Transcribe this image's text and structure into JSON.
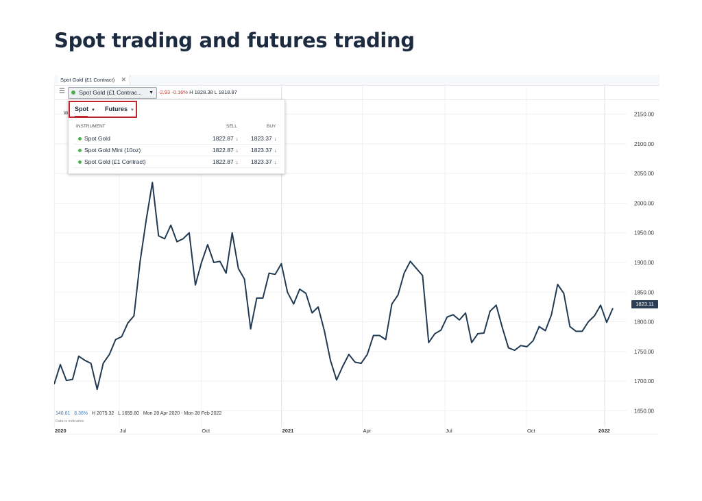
{
  "page": {
    "title": "Spot trading and futures trading"
  },
  "tabbar": {
    "tab_label": "Spot Gold (£1 Contract)",
    "close_glyph": "✕"
  },
  "toolbar": {
    "menu_glyph": "☰",
    "selector_label": "Spot Gold (£1 Contrac...",
    "change": "-2.93",
    "change_pct": "-0.16%",
    "high": "H 1828.38",
    "low": "L 1818.87"
  },
  "dropdown": {
    "tabs": [
      {
        "label": "Spot"
      },
      {
        "label": "Futures"
      }
    ],
    "headers": {
      "instrument": "INSTRUMENT",
      "sell": "SELL",
      "buy": "BUY"
    },
    "rows": [
      {
        "name": "Spot Gold",
        "sell": "1822.87",
        "buy": "1823.37"
      },
      {
        "name": "Spot Gold Mini (10oz)",
        "sell": "1822.87",
        "buy": "1823.37"
      },
      {
        "name": "Spot Gold (£1 Contract)",
        "sell": "1822.87",
        "buy": "1823.37"
      }
    ],
    "arrow_glyph": "↓",
    "hidden_prefix": "W"
  },
  "stats": {
    "change": "140.61",
    "change_pct": "8.36%",
    "high": "H 2075.32",
    "low": "L 1659.80",
    "range": "Mon 20 Apr 2020 - Mon 28 Feb 2022",
    "note": "Data is indicative"
  },
  "colors": {
    "line": "#1f3a52",
    "accent": "#c0272d",
    "badge": "#2b3e55"
  },
  "chart_data": {
    "type": "line",
    "ylim": [
      1625,
      2175
    ],
    "y_ticks": [
      "2150.00",
      "2100.00",
      "2050.00",
      "2000.00",
      "1950.00",
      "1900.00",
      "1850.00",
      "1800.00",
      "1750.00",
      "1700.00",
      "1650.00"
    ],
    "x_ticks": [
      {
        "label": "2020",
        "t": 0.0,
        "bold": true
      },
      {
        "label": "Jul",
        "t": 0.118
      },
      {
        "label": "Oct",
        "t": 0.267
      },
      {
        "label": "2021",
        "t": 0.413,
        "bold": true
      },
      {
        "label": "Apr",
        "t": 0.56
      },
      {
        "label": "Jul",
        "t": 0.71
      },
      {
        "label": "Oct",
        "t": 0.858
      },
      {
        "label": "2022",
        "t": 1.0,
        "bold": true
      }
    ],
    "last_price": "1823.11",
    "series": [
      {
        "values": [
          1695,
          1728,
          1701,
          1703,
          1742,
          1735,
          1730,
          1686,
          1730,
          1745,
          1770,
          1775,
          1798,
          1810,
          1902,
          1972,
          2035,
          1945,
          1940,
          1963,
          1935,
          1940,
          1950,
          1862,
          1900,
          1930,
          1900,
          1902,
          1882,
          1950,
          1890,
          1872,
          1788,
          1840,
          1840,
          1882,
          1880,
          1898,
          1850,
          1830,
          1855,
          1848,
          1815,
          1825,
          1785,
          1735,
          1702,
          1725,
          1745,
          1732,
          1730,
          1745,
          1777,
          1777,
          1770,
          1830,
          1845,
          1882,
          1902,
          1890,
          1878,
          1765,
          1780,
          1786,
          1808,
          1812,
          1803,
          1815,
          1765,
          1780,
          1781,
          1818,
          1828,
          1790,
          1756,
          1752,
          1760,
          1758,
          1768,
          1792,
          1785,
          1812,
          1863,
          1848,
          1792,
          1784,
          1784,
          1800,
          1810,
          1828,
          1799,
          1823
        ]
      }
    ]
  }
}
